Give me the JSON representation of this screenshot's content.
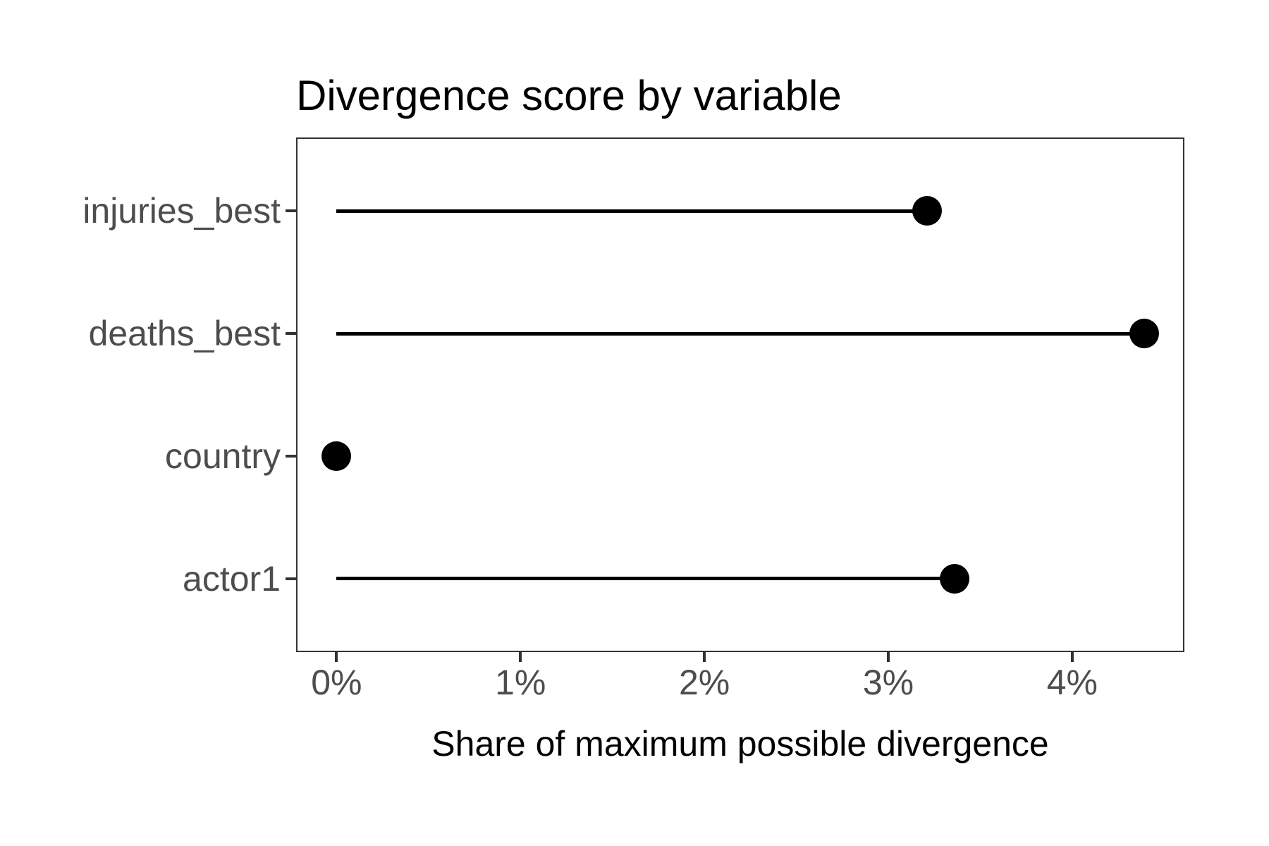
{
  "chart_data": {
    "type": "lollipop",
    "orientation": "horizontal",
    "title": "Divergence score by variable",
    "xlabel": "Share of maximum possible divergence",
    "ylabel": "",
    "categories": [
      "injuries_best",
      "deaths_best",
      "country",
      "actor1"
    ],
    "values": [
      3.21,
      4.39,
      0,
      3.36
    ],
    "unit": "%",
    "x_tick_labels": [
      "0%",
      "1%",
      "2%",
      "3%",
      "4%"
    ],
    "x_tick_values": [
      0,
      1,
      2,
      3,
      4
    ],
    "xlim": [
      -0.22,
      4.61
    ],
    "grid": false,
    "legend": "none",
    "colors": {
      "point": "#000000",
      "stem": "#000000",
      "title": "#000000",
      "axis_title": "#000000",
      "tick_text": "#4d4d4d",
      "tick_mark": "#333333",
      "panel_border": "#333333",
      "background": "#ffffff"
    }
  }
}
